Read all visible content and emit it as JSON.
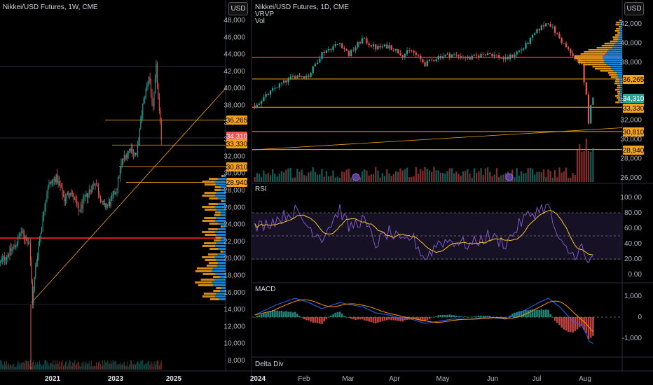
{
  "colors": {
    "up": "#26a69a",
    "down": "#ef5350",
    "level": "#f7a21b",
    "red_level": "#ff2020",
    "macd": "#2962ff",
    "signal": "#ff9800",
    "rsi": "#7e57c2",
    "rsi_ma": "#f7c52b",
    "vp_up": "#2196f3",
    "vp_down": "#f7a21b"
  },
  "left_panel": {
    "title": "Nikkei/USD Futures, 1W, CME",
    "currency_button": "USD",
    "price_axis": [
      "48,000",
      "46,000",
      "44,000",
      "42,000",
      "40,000",
      "38,000",
      "36,000",
      "34,000",
      "32,000",
      "30,000",
      "28,000",
      "26,000",
      "24,000",
      "22,000",
      "20,000",
      "18,000",
      "16,000",
      "14,000",
      "12,000",
      "10,000",
      "8,000"
    ],
    "time_axis": [
      "2021",
      "2023",
      "2025"
    ],
    "price_tags": [
      {
        "label": "36,265",
        "kind": "level"
      },
      {
        "label": "34,310",
        "kind": "last"
      },
      {
        "label": "33,330",
        "kind": "level"
      },
      {
        "label": "30,810",
        "kind": "level"
      },
      {
        "label": "28,940",
        "kind": "level"
      }
    ]
  },
  "right_panel": {
    "title": "Nikkei/USD Futures, 1D, CME",
    "currency_button": "USD",
    "indicator_labels": [
      "VRVP",
      "Vol"
    ],
    "price_axis": [
      "42,000",
      "40,000",
      "38,000",
      "36,000",
      "34,000",
      "32,000",
      "30,000",
      "28,000",
      "26,000"
    ],
    "price_tags": [
      {
        "label": "36,265",
        "kind": "level"
      },
      {
        "label": "34,310",
        "kind": "last"
      },
      {
        "label": "33,330",
        "kind": "level"
      },
      {
        "label": "30,810",
        "kind": "level"
      },
      {
        "label": "28,940",
        "kind": "level"
      }
    ],
    "time_axis": [
      "2024",
      "Feb",
      "Mar",
      "Apr",
      "May",
      "Jun",
      "Jul",
      "Aug"
    ],
    "rsi": {
      "label": "RSI",
      "axis": [
        "100.00",
        "80.00",
        "60.00",
        "40.00",
        "20.00",
        "0.00"
      ]
    },
    "macd": {
      "label": "MACD",
      "axis": [
        "1,000",
        "0",
        "-1,000"
      ]
    },
    "delta_div": {
      "label": "Delta Div"
    }
  },
  "chart_data": [
    {
      "type": "candlestick",
      "title": "Nikkei/USD Futures, 1W, CME",
      "ylim": [
        7000,
        49500
      ],
      "levels": [
        36265,
        33330,
        30810,
        28940
      ],
      "red_level": 22400,
      "last_price": 34310,
      "anchors": [
        [
          0,
          19500
        ],
        [
          14,
          21500
        ],
        [
          20,
          23000
        ],
        [
          28,
          21800
        ],
        [
          31,
          14800
        ],
        [
          34,
          19000
        ],
        [
          40,
          24000
        ],
        [
          46,
          28500
        ],
        [
          54,
          29500
        ],
        [
          62,
          27000
        ],
        [
          68,
          28000
        ],
        [
          76,
          25500
        ],
        [
          84,
          27500
        ],
        [
          92,
          29000
        ],
        [
          100,
          26000
        ],
        [
          106,
          26500
        ],
        [
          112,
          28000
        ],
        [
          118,
          31500
        ],
        [
          126,
          33000
        ],
        [
          132,
          32000
        ],
        [
          138,
          38000
        ],
        [
          144,
          41500
        ],
        [
          148,
          37500
        ],
        [
          151,
          42500
        ],
        [
          154,
          37000
        ],
        [
          156,
          34300
        ]
      ]
    },
    {
      "type": "candlestick",
      "title": "Nikkei/USD Futures, 1D, CME",
      "ylim": [
        25500,
        43200
      ],
      "levels": [
        36265,
        33330,
        30810,
        28940
      ],
      "red_level": 38500,
      "last_price": 34310,
      "x": [
        "2024",
        "Feb",
        "Mar",
        "Apr",
        "May",
        "Jun",
        "Jul",
        "Aug"
      ],
      "anchors": [
        [
          0,
          33500
        ],
        [
          10,
          35500
        ],
        [
          18,
          36600
        ],
        [
          24,
          36600
        ],
        [
          30,
          39000
        ],
        [
          38,
          40000
        ],
        [
          42,
          38800
        ],
        [
          48,
          40400
        ],
        [
          54,
          39500
        ],
        [
          60,
          39700
        ],
        [
          66,
          38800
        ],
        [
          70,
          39200
        ],
        [
          76,
          37800
        ],
        [
          82,
          38600
        ],
        [
          88,
          38800
        ],
        [
          96,
          38400
        ],
        [
          104,
          39000
        ],
        [
          112,
          38300
        ],
        [
          120,
          39500
        ],
        [
          127,
          41500
        ],
        [
          131,
          42200
        ],
        [
          136,
          40500
        ],
        [
          142,
          38600
        ],
        [
          146,
          37800
        ],
        [
          148,
          34500
        ],
        [
          149,
          31500
        ],
        [
          150,
          33800
        ],
        [
          151,
          34310
        ]
      ]
    },
    {
      "type": "line",
      "title": "RSI",
      "ylim": [
        0,
        100
      ],
      "bands": [
        80,
        50,
        20
      ],
      "anchors": [
        [
          0,
          60
        ],
        [
          10,
          72
        ],
        [
          18,
          82
        ],
        [
          24,
          62
        ],
        [
          30,
          48
        ],
        [
          38,
          85
        ],
        [
          42,
          60
        ],
        [
          48,
          72
        ],
        [
          54,
          40
        ],
        [
          60,
          55
        ],
        [
          66,
          40
        ],
        [
          70,
          50
        ],
        [
          76,
          20
        ],
        [
          82,
          42
        ],
        [
          88,
          44
        ],
        [
          96,
          38
        ],
        [
          104,
          50
        ],
        [
          112,
          40
        ],
        [
          120,
          72
        ],
        [
          127,
          85
        ],
        [
          131,
          88
        ],
        [
          136,
          40
        ],
        [
          142,
          25
        ],
        [
          146,
          35
        ],
        [
          148,
          15
        ],
        [
          149,
          12
        ],
        [
          150,
          22
        ],
        [
          151,
          25
        ]
      ]
    },
    {
      "type": "bar",
      "title": "MACD",
      "ylim": [
        -1400,
        1500
      ],
      "anchors": [
        [
          0,
          100
        ],
        [
          10,
          600
        ],
        [
          18,
          900
        ],
        [
          24,
          700
        ],
        [
          30,
          400
        ],
        [
          38,
          700
        ],
        [
          42,
          600
        ],
        [
          48,
          500
        ],
        [
          54,
          200
        ],
        [
          60,
          100
        ],
        [
          66,
          -100
        ],
        [
          70,
          -100
        ],
        [
          76,
          -300
        ],
        [
          82,
          -200
        ],
        [
          88,
          -100
        ],
        [
          96,
          -100
        ],
        [
          104,
          0
        ],
        [
          112,
          -100
        ],
        [
          120,
          300
        ],
        [
          127,
          700
        ],
        [
          131,
          900
        ],
        [
          136,
          500
        ],
        [
          142,
          -200
        ],
        [
          146,
          -400
        ],
        [
          148,
          -800
        ],
        [
          149,
          -1100
        ],
        [
          150,
          -1200
        ],
        [
          151,
          -1250
        ]
      ]
    }
  ]
}
